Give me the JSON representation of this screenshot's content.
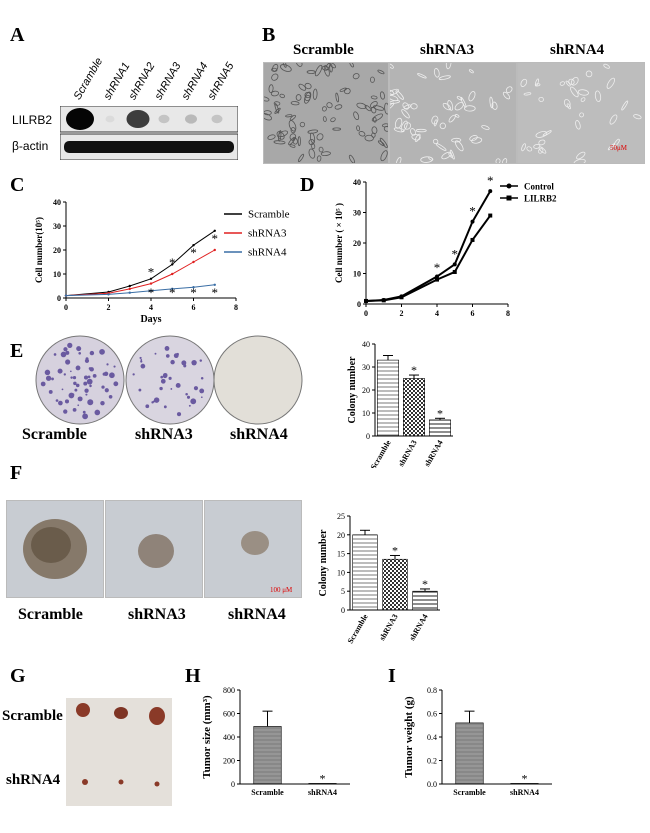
{
  "panels": {
    "A": "A",
    "B": "B",
    "C": "C",
    "D": "D",
    "E": "E",
    "F": "F",
    "G": "G",
    "H": "H",
    "I": "I"
  },
  "blot": {
    "lanes": [
      "Scramble",
      "shRNA1",
      "shRNA2",
      "shRNA3",
      "shRNA4",
      "shRNA5"
    ],
    "rows": [
      "LILRB2",
      "β-actin"
    ],
    "band_intensity": [
      1.0,
      0.05,
      0.75,
      0.15,
      0.2,
      0.15
    ]
  },
  "micro_b": {
    "labels": [
      "Scramble",
      "shRNA3",
      "shRNA4"
    ],
    "scalebar": "50μM"
  },
  "colony_e": {
    "labels": [
      "Scramble",
      "shRNA3",
      "shRNA4"
    ]
  },
  "sphere_f": {
    "labels": [
      "Scramble",
      "shRNA3",
      "shRNA4"
    ],
    "scalebar": "100 μM"
  },
  "tumor_g": {
    "rows": [
      "Scramble",
      "shRNA4"
    ]
  },
  "chart_data": [
    {
      "id": "C",
      "type": "line",
      "x": [
        0,
        2,
        3,
        4,
        5,
        6,
        7
      ],
      "series": [
        {
          "name": "Scramble",
          "color": "#000000",
          "values": [
            1,
            2.5,
            5,
            8,
            14,
            22,
            28
          ]
        },
        {
          "name": "shRNA3",
          "color": "#e02020",
          "values": [
            1,
            2,
            3.8,
            6,
            10,
            15,
            20
          ]
        },
        {
          "name": "shRNA4",
          "color": "#3a6ea5",
          "values": [
            1,
            1.5,
            2.2,
            3,
            3.8,
            4.5,
            5.5
          ]
        }
      ],
      "xlabel": "Days",
      "ylabel": "Cell number(10⁵)",
      "xlim": [
        0,
        8
      ],
      "ylim": [
        0,
        40
      ],
      "xticks": [
        0,
        2,
        4,
        6,
        8
      ],
      "yticks": [
        0,
        10,
        20,
        30,
        40
      ],
      "legend": "top-right",
      "annotations": [
        "*"
      ]
    },
    {
      "id": "D",
      "type": "line",
      "x": [
        0,
        1,
        2,
        4,
        5,
        6,
        7
      ],
      "series": [
        {
          "name": "Control",
          "color": "#000000",
          "values": [
            1,
            1.3,
            2.5,
            9,
            13,
            27,
            37
          ]
        },
        {
          "name": "LILRB2",
          "color": "#000000",
          "values": [
            1,
            1.2,
            2.2,
            8,
            10.5,
            21,
            29
          ]
        }
      ],
      "xlabel": "",
      "ylabel": "Cell number ( × 10⁵ )",
      "xlim": [
        0,
        8
      ],
      "ylim": [
        0,
        40
      ],
      "xticks": [
        0,
        2,
        4,
        6,
        8
      ],
      "yticks": [
        0,
        10,
        20,
        30,
        40
      ],
      "legend": "top-right",
      "annotations": [
        "*"
      ]
    },
    {
      "id": "E",
      "type": "bar",
      "categories": [
        "Scramble",
        "shRNA3",
        "shRNA4"
      ],
      "values": [
        33,
        25,
        7
      ],
      "errors": [
        2,
        1.5,
        0.7
      ],
      "ylabel": "Colony number",
      "ylim": [
        0,
        40
      ],
      "yticks": [
        0,
        10,
        20,
        30,
        40
      ],
      "annotations": [
        "*"
      ]
    },
    {
      "id": "F",
      "type": "bar",
      "categories": [
        "Scramble",
        "shRNA3",
        "shRNA4"
      ],
      "values": [
        20,
        13.5,
        5
      ],
      "errors": [
        1.2,
        1,
        0.6
      ],
      "ylabel": "Colony number",
      "ylim": [
        0,
        25
      ],
      "yticks": [
        0,
        5,
        10,
        15,
        20,
        25
      ],
      "annotations": [
        "*"
      ]
    },
    {
      "id": "H",
      "type": "bar",
      "categories": [
        "Scramble",
        "shRNA4"
      ],
      "values": [
        490,
        5
      ],
      "errors": [
        130,
        0
      ],
      "ylabel": "Tumor size (mm³)",
      "ylim": [
        0,
        800
      ],
      "yticks": [
        0,
        200,
        400,
        600,
        800
      ],
      "annotations": [
        "*"
      ]
    },
    {
      "id": "I",
      "type": "bar",
      "categories": [
        "Scramble",
        "shRNA4"
      ],
      "values": [
        0.52,
        0.005
      ],
      "errors": [
        0.1,
        0
      ],
      "ylabel": "Tumor weight (g)",
      "ylim": [
        0,
        0.8
      ],
      "yticks": [
        0.0,
        0.2,
        0.4,
        0.6,
        0.8
      ],
      "annotations": [
        "*"
      ]
    }
  ]
}
